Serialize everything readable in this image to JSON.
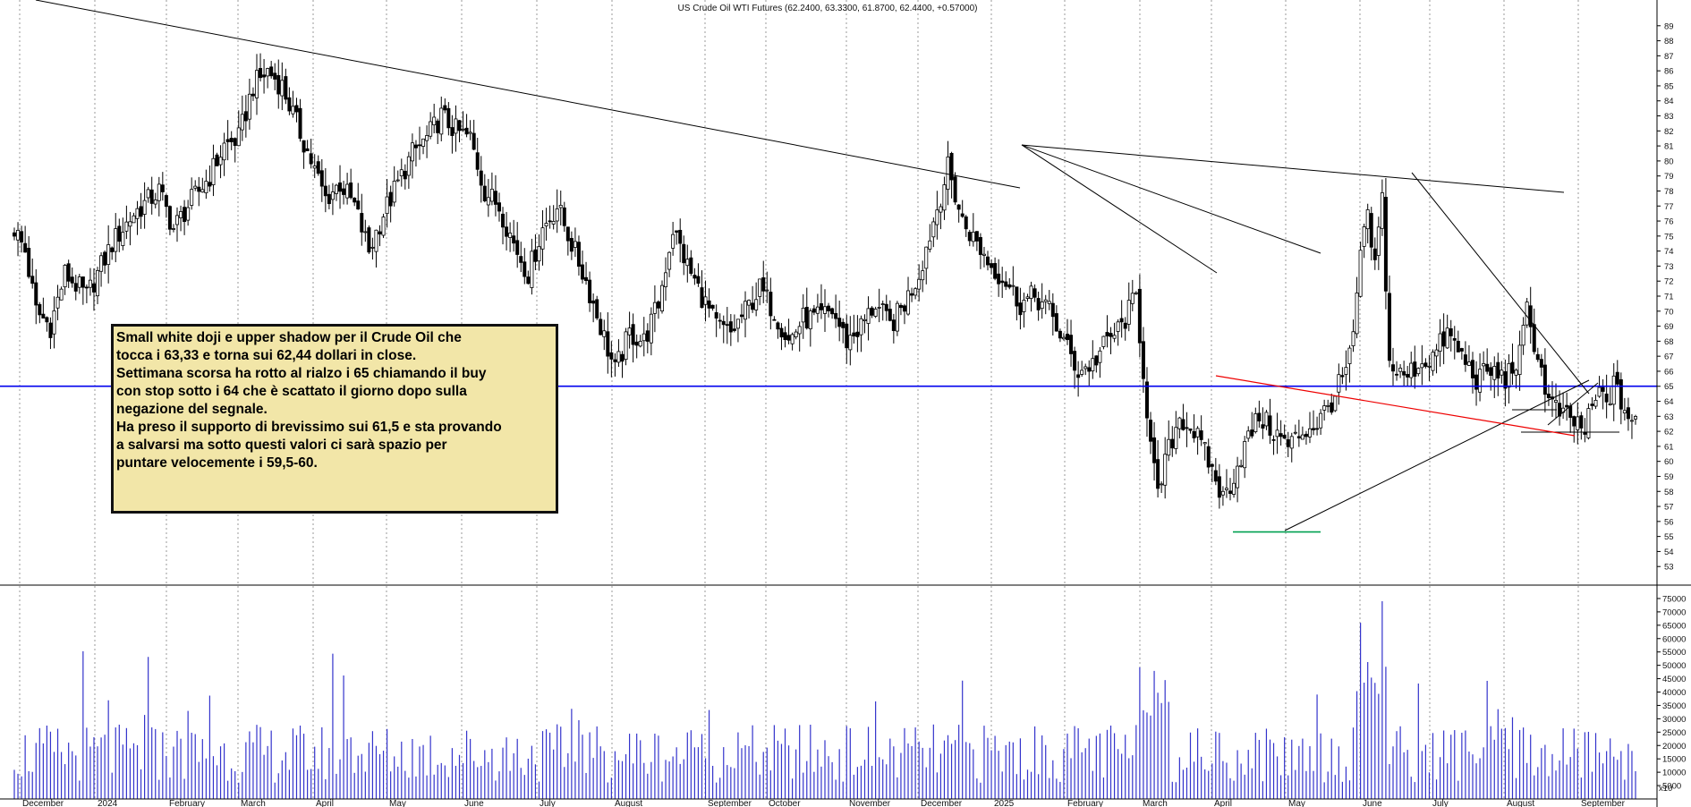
{
  "chart_data": {
    "type": "candlestick",
    "title": "US Crude Oil WTI Futures  (62.2400, 63.3300, 61.8700, 62.4400, +0.57000)",
    "price_axis": {
      "range": [
        52,
        90
      ],
      "ticks": [
        53,
        54,
        55,
        56,
        57,
        58,
        59,
        60,
        61,
        62,
        63,
        64,
        65,
        66,
        67,
        68,
        69,
        70,
        71,
        72,
        73,
        74,
        75,
        76,
        77,
        78,
        79,
        80,
        81,
        82,
        83,
        84,
        85,
        86,
        87,
        88,
        89
      ]
    },
    "volume_axis": {
      "range": [
        0,
        78000
      ],
      "ticks": [
        "75000",
        "70000",
        "65000",
        "60000",
        "55000",
        "50000",
        "45000",
        "40000",
        "35000",
        "30000",
        "25000",
        "20000",
        "15000",
        "10000",
        "5000"
      ],
      "bottom_label": "x10"
    },
    "months": [
      "December",
      "2024",
      "February",
      "March",
      "April",
      "May",
      "June",
      "July",
      "August",
      "September",
      "October",
      "November",
      "December",
      "2025",
      "February",
      "March",
      "April",
      "May",
      "June",
      "July",
      "August",
      "September"
    ],
    "price_path": [
      {
        "t": 0,
        "p": 75.5
      },
      {
        "t": 3,
        "p": 74
      },
      {
        "t": 6,
        "p": 70
      },
      {
        "t": 10,
        "p": 69
      },
      {
        "t": 14,
        "p": 72.5
      },
      {
        "t": 20,
        "p": 71
      },
      {
        "t": 27,
        "p": 74.5
      },
      {
        "t": 33,
        "p": 76.5
      },
      {
        "t": 40,
        "p": 78
      },
      {
        "t": 44,
        "p": 75.5
      },
      {
        "t": 48,
        "p": 77
      },
      {
        "t": 54,
        "p": 79
      },
      {
        "t": 58,
        "p": 81
      },
      {
        "t": 62,
        "p": 81.5
      },
      {
        "t": 66,
        "p": 85
      },
      {
        "t": 70,
        "p": 86
      },
      {
        "t": 74,
        "p": 85
      },
      {
        "t": 78,
        "p": 82.5
      },
      {
        "t": 82,
        "p": 80
      },
      {
        "t": 86,
        "p": 77.5
      },
      {
        "t": 90,
        "p": 78.5
      },
      {
        "t": 94,
        "p": 77
      },
      {
        "t": 98,
        "p": 74
      },
      {
        "t": 102,
        "p": 76.5
      },
      {
        "t": 106,
        "p": 78.5
      },
      {
        "t": 110,
        "p": 80.5
      },
      {
        "t": 114,
        "p": 81.5
      },
      {
        "t": 118,
        "p": 83
      },
      {
        "t": 122,
        "p": 82
      },
      {
        "t": 126,
        "p": 81.5
      },
      {
        "t": 130,
        "p": 78
      },
      {
        "t": 134,
        "p": 77
      },
      {
        "t": 138,
        "p": 74.5
      },
      {
        "t": 142,
        "p": 72.5
      },
      {
        "t": 146,
        "p": 75.5
      },
      {
        "t": 150,
        "p": 77
      },
      {
        "t": 154,
        "p": 74.5
      },
      {
        "t": 158,
        "p": 72
      },
      {
        "t": 162,
        "p": 69
      },
      {
        "t": 166,
        "p": 66
      },
      {
        "t": 170,
        "p": 68.5
      },
      {
        "t": 174,
        "p": 68
      },
      {
        "t": 178,
        "p": 70.5
      },
      {
        "t": 182,
        "p": 75.5
      },
      {
        "t": 186,
        "p": 73
      },
      {
        "t": 190,
        "p": 71
      },
      {
        "t": 194,
        "p": 69
      },
      {
        "t": 198,
        "p": 68.5
      },
      {
        "t": 202,
        "p": 70
      },
      {
        "t": 206,
        "p": 71.5
      },
      {
        "t": 210,
        "p": 70
      },
      {
        "t": 214,
        "p": 68
      },
      {
        "t": 218,
        "p": 69.5
      },
      {
        "t": 222,
        "p": 69.5
      },
      {
        "t": 226,
        "p": 70
      },
      {
        "t": 230,
        "p": 68
      },
      {
        "t": 234,
        "p": 69
      },
      {
        "t": 238,
        "p": 70.5
      },
      {
        "t": 242,
        "p": 69
      },
      {
        "t": 246,
        "p": 70.5
      },
      {
        "t": 250,
        "p": 72.5
      },
      {
        "t": 254,
        "p": 76
      },
      {
        "t": 258,
        "p": 79.5
      },
      {
        "t": 262,
        "p": 76
      },
      {
        "t": 266,
        "p": 74.5
      },
      {
        "t": 270,
        "p": 73
      },
      {
        "t": 274,
        "p": 72
      },
      {
        "t": 278,
        "p": 70.5
      },
      {
        "t": 282,
        "p": 71
      },
      {
        "t": 286,
        "p": 70
      },
      {
        "t": 290,
        "p": 68
      },
      {
        "t": 294,
        "p": 66
      },
      {
        "t": 298,
        "p": 66.5
      },
      {
        "t": 302,
        "p": 68
      },
      {
        "t": 306,
        "p": 69
      },
      {
        "t": 310,
        "p": 71
      },
      {
        "t": 312,
        "p": 66
      },
      {
        "t": 314,
        "p": 61
      },
      {
        "t": 316,
        "p": 57.5
      },
      {
        "t": 318,
        "p": 60
      },
      {
        "t": 322,
        "p": 63
      },
      {
        "t": 326,
        "p": 62
      },
      {
        "t": 330,
        "p": 60
      },
      {
        "t": 334,
        "p": 57.5
      },
      {
        "t": 336,
        "p": 58.5
      },
      {
        "t": 340,
        "p": 61
      },
      {
        "t": 344,
        "p": 63
      },
      {
        "t": 348,
        "p": 62
      },
      {
        "t": 352,
        "p": 61
      },
      {
        "t": 356,
        "p": 62
      },
      {
        "t": 360,
        "p": 62.5
      },
      {
        "t": 364,
        "p": 64
      },
      {
        "t": 368,
        "p": 66
      },
      {
        "t": 370,
        "p": 68
      },
      {
        "t": 372,
        "p": 74
      },
      {
        "t": 374,
        "p": 76
      },
      {
        "t": 376,
        "p": 73
      },
      {
        "t": 378,
        "p": 77.5
      },
      {
        "t": 380,
        "p": 66.5
      },
      {
        "t": 384,
        "p": 65.5
      },
      {
        "t": 388,
        "p": 66.5
      },
      {
        "t": 392,
        "p": 67
      },
      {
        "t": 396,
        "p": 68.5
      },
      {
        "t": 400,
        "p": 67
      },
      {
        "t": 404,
        "p": 65.5
      },
      {
        "t": 408,
        "p": 66
      },
      {
        "t": 412,
        "p": 65.5
      },
      {
        "t": 416,
        "p": 67
      },
      {
        "t": 418,
        "p": 70
      },
      {
        "t": 420,
        "p": 68
      },
      {
        "t": 422,
        "p": 66
      },
      {
        "t": 424,
        "p": 64
      },
      {
        "t": 428,
        "p": 63
      },
      {
        "t": 432,
        "p": 62.5
      },
      {
        "t": 434,
        "p": 62
      },
      {
        "t": 436,
        "p": 63.5
      },
      {
        "t": 438,
        "p": 64.5
      },
      {
        "t": 440,
        "p": 64
      },
      {
        "t": 442,
        "p": 65
      },
      {
        "t": 444,
        "p": 64
      },
      {
        "t": 446,
        "p": 63
      },
      {
        "t": 448,
        "p": 62.4
      }
    ],
    "reference_lines": {
      "support_resistance_price": 65,
      "support_line_price": 55.3,
      "colors": {
        "horizontal": "#0000ee",
        "support": "#00a050",
        "red_trend": "#ee0000",
        "trend": "#000000",
        "candle_border": "#000000",
        "volume": "#3333cc"
      }
    },
    "annotation": {
      "lines": [
        "Small white doji e upper shadow per il Crude Oil che",
        "tocca i 63,33 e torna sui 62,44 dollari in close.",
        "Settimana scorsa ha rotto al rialzo i 65 chiamando il buy",
        "con stop sotto i 64 che è scattato il giorno dopo sulla",
        "negazione del segnale.",
        "Ha preso il supporto di brevissimo sui 61,5 e sta provando",
        "a salvarsi ma sotto questi valori ci sarà spazio per",
        "puntare velocemente i 59,5-60."
      ]
    }
  }
}
